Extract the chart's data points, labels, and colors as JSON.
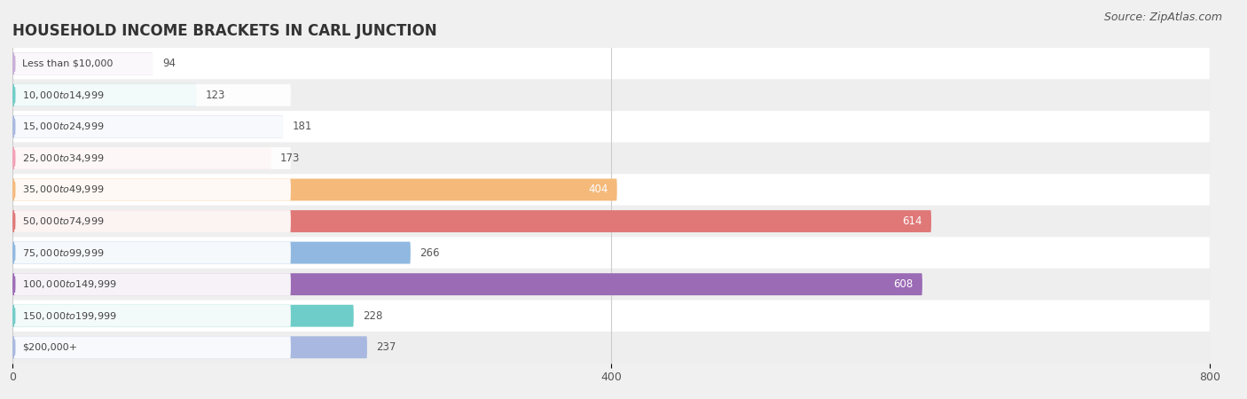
{
  "title": "HOUSEHOLD INCOME BRACKETS IN CARL JUNCTION",
  "source": "Source: ZipAtlas.com",
  "categories": [
    "Less than $10,000",
    "$10,000 to $14,999",
    "$15,000 to $24,999",
    "$25,000 to $34,999",
    "$35,000 to $49,999",
    "$50,000 to $74,999",
    "$75,000 to $99,999",
    "$100,000 to $149,999",
    "$150,000 to $199,999",
    "$200,000+"
  ],
  "values": [
    94,
    123,
    181,
    173,
    404,
    614,
    266,
    608,
    228,
    237
  ],
  "bar_colors": [
    "#c9aed6",
    "#6ecdc8",
    "#a8b8e0",
    "#f4a0b5",
    "#f5b97a",
    "#e07878",
    "#90b8e0",
    "#9b6bb5",
    "#6ecdc8",
    "#a8b8e0"
  ],
  "xlim": [
    0,
    800
  ],
  "xticks": [
    0,
    400,
    800
  ],
  "background_color": "#f0f0f0",
  "row_colors": [
    "#ffffff",
    "#eeeeee"
  ],
  "label_inside_color": "#ffffff",
  "label_outside_color": "#555555",
  "title_fontsize": 12,
  "source_fontsize": 9,
  "bar_height": 0.7,
  "value_threshold": 300
}
